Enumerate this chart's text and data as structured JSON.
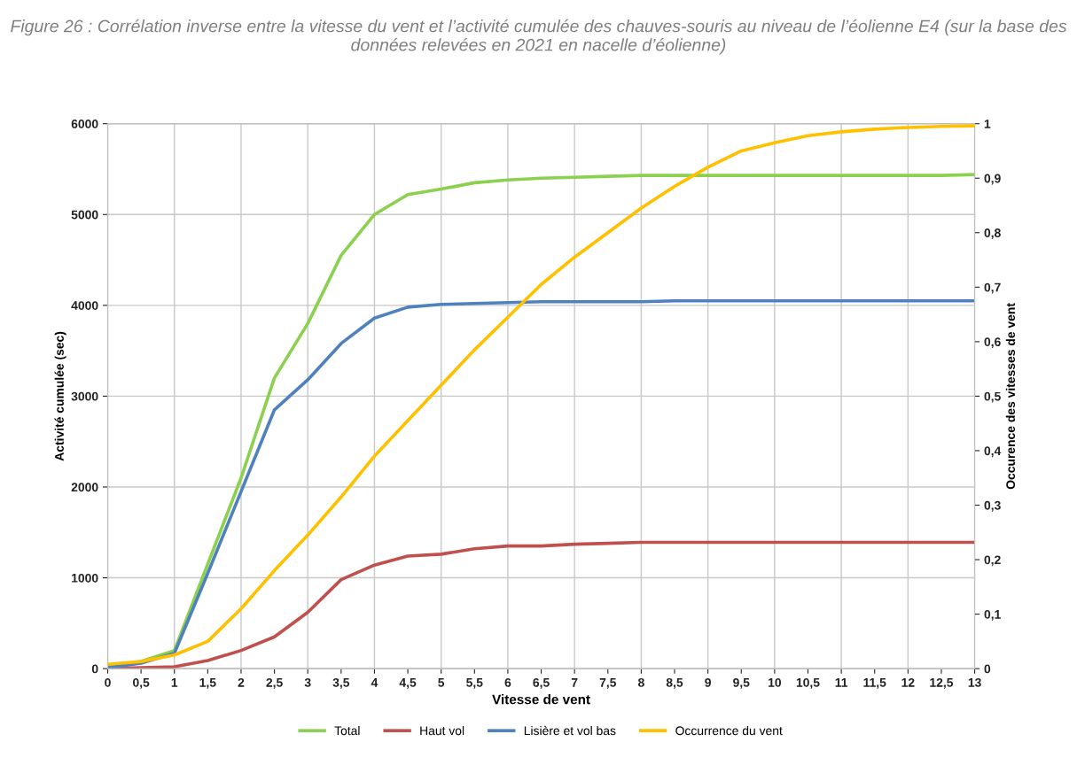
{
  "chart_data": {
    "type": "line",
    "title": "Figure 26 : Corrélation inverse entre la vitesse du vent et l’activité cumulée des chauves-souris au niveau de l’éolienne E4 (sur la base des données relevées en 2021 en nacelle d’éolienne)",
    "xlabel": "Vitesse de vent",
    "ylabel": "Activité cumulée (sec)",
    "y2label": "Occurence des vitesses de vent",
    "categories": [
      "0",
      "0,5",
      "1",
      "1,5",
      "2",
      "2,5",
      "3",
      "3,5",
      "4",
      "4,5",
      "5",
      "5,5",
      "6",
      "6,5",
      "7",
      "7,5",
      "8",
      "8,5",
      "9",
      "9,5",
      "10",
      "10,5",
      "11",
      "11,5",
      "12",
      "12,5",
      "13"
    ],
    "series": [
      {
        "name": "Total",
        "color": "#8cd04f",
        "values": [
          30,
          80,
          200,
          1150,
          2100,
          3200,
          3800,
          4550,
          5000,
          5220,
          5280,
          5350,
          5380,
          5400,
          5410,
          5420,
          5430,
          5430,
          5430,
          5430,
          5430,
          5430,
          5430,
          5430,
          5430,
          5430,
          5440
        ]
      },
      {
        "name": "Haut vol",
        "color": "#c0504d",
        "values": [
          0,
          10,
          20,
          90,
          200,
          350,
          620,
          980,
          1140,
          1240,
          1260,
          1320,
          1350,
          1350,
          1370,
          1380,
          1390,
          1390,
          1390,
          1390,
          1390,
          1390,
          1390,
          1390,
          1390,
          1390,
          1390
        ]
      },
      {
        "name": "Lisière et vol bas",
        "color": "#4f81bd",
        "values": [
          10,
          60,
          170,
          1050,
          1950,
          2850,
          3180,
          3580,
          3860,
          3980,
          4010,
          4020,
          4030,
          4040,
          4040,
          4040,
          4040,
          4050,
          4050,
          4050,
          4050,
          4050,
          4050,
          4050,
          4050,
          4050,
          4050
        ]
      },
      {
        "name": "Occurrence du vent",
        "color": "#ffc000",
        "axis": "y2",
        "values": [
          0.008,
          0.013,
          0.025,
          0.05,
          0.11,
          0.18,
          0.245,
          0.315,
          0.39,
          0.455,
          0.52,
          0.585,
          0.645,
          0.705,
          0.755,
          0.8,
          0.845,
          0.885,
          0.92,
          0.95,
          0.965,
          0.978,
          0.985,
          0.99,
          0.993,
          0.995,
          0.996
        ]
      }
    ],
    "ylim": [
      0,
      6000
    ],
    "yticks": [
      0,
      1000,
      2000,
      3000,
      4000,
      5000,
      6000
    ],
    "y2lim": [
      0,
      1
    ],
    "y2ticks": [
      0,
      {
        "value": 0.1,
        "label": "0,1"
      },
      {
        "value": 0.2,
        "label": "0,2"
      },
      {
        "value": 0.3,
        "label": "0,3"
      },
      {
        "value": 0.4,
        "label": "0,4"
      },
      {
        "value": 0.5,
        "label": "0,5"
      },
      {
        "value": 0.6,
        "label": "0,6"
      },
      {
        "value": 0.7,
        "label": "0,7"
      },
      {
        "value": 0.8,
        "label": "0,8"
      },
      {
        "value": 0.9,
        "label": "0,9"
      },
      1
    ],
    "grid": true,
    "legend": "bottom",
    "marker": "none",
    "line_style": "solid"
  }
}
